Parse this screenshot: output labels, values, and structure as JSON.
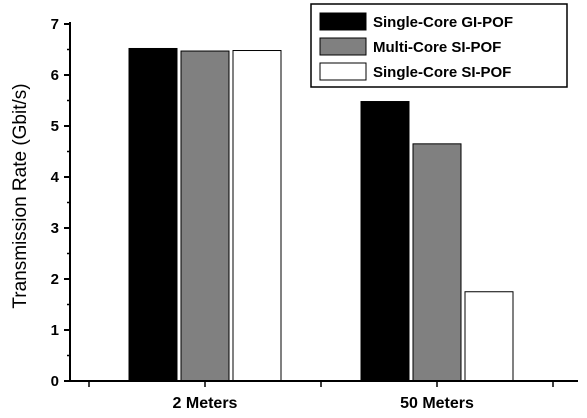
{
  "chart_data": {
    "type": "bar",
    "categories": [
      "2 Meters",
      "50 Meters"
    ],
    "series": [
      {
        "name": "Single-Core GI-POF",
        "values": [
          6.52,
          5.48
        ],
        "color": "#000000"
      },
      {
        "name": "Multi-Core SI-POF",
        "values": [
          6.47,
          4.65
        ],
        "color": "#808080"
      },
      {
        "name": "Single-Core SI-POF",
        "values": [
          6.48,
          1.75
        ],
        "color": "#ffffff"
      }
    ],
    "xlabel": "",
    "ylabel": "Transmission Rate (Gbit/s)",
    "ylim": [
      0,
      7
    ],
    "yticks": [
      "0",
      "1",
      "2",
      "3",
      "4",
      "5",
      "6",
      "7"
    ],
    "grid": false,
    "legend": "top-right"
  }
}
